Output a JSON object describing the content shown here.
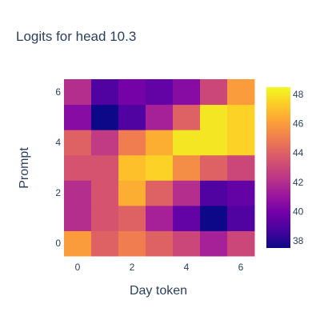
{
  "chart_data": {
    "type": "heatmap",
    "title": "Logits for head 10.3",
    "xlabel": "Day token",
    "ylabel": "Prompt",
    "x": [
      0,
      1,
      2,
      3,
      4,
      5,
      6
    ],
    "y": [
      0,
      1,
      2,
      3,
      4,
      5,
      6
    ],
    "x_tick_labels": [
      "0",
      "2",
      "4",
      "6"
    ],
    "x_tick_values": [
      0,
      2,
      4,
      6
    ],
    "y_tick_labels": [
      "0",
      "2",
      "4",
      "6"
    ],
    "y_tick_values": [
      0,
      2,
      4,
      6
    ],
    "z": [
      [
        46.0,
        44.0,
        45.0,
        44.0,
        43.0,
        41.5,
        43.0
      ],
      [
        42.0,
        43.5,
        44.0,
        41.5,
        39.5,
        37.5,
        39.0
      ],
      [
        42.0,
        43.5,
        46.5,
        44.0,
        42.0,
        39.0,
        39.5
      ],
      [
        43.5,
        43.5,
        47.0,
        47.5,
        45.5,
        44.0,
        43.0
      ],
      [
        44.0,
        42.5,
        45.0,
        46.5,
        48.0,
        48.0,
        47.5
      ],
      [
        40.5,
        37.5,
        39.0,
        41.5,
        44.0,
        48.0,
        47.5
      ],
      [
        42.0,
        39.0,
        40.0,
        39.5,
        40.5,
        43.0,
        46.0
      ]
    ],
    "colorscale": "plasma",
    "zmin": 37.5,
    "zmax": 48.5,
    "colorbar_tick_labels": [
      "38",
      "40",
      "42",
      "44",
      "46",
      "48"
    ],
    "colorbar_tick_values": [
      38,
      40,
      42,
      44,
      46,
      48
    ],
    "grid": false
  }
}
